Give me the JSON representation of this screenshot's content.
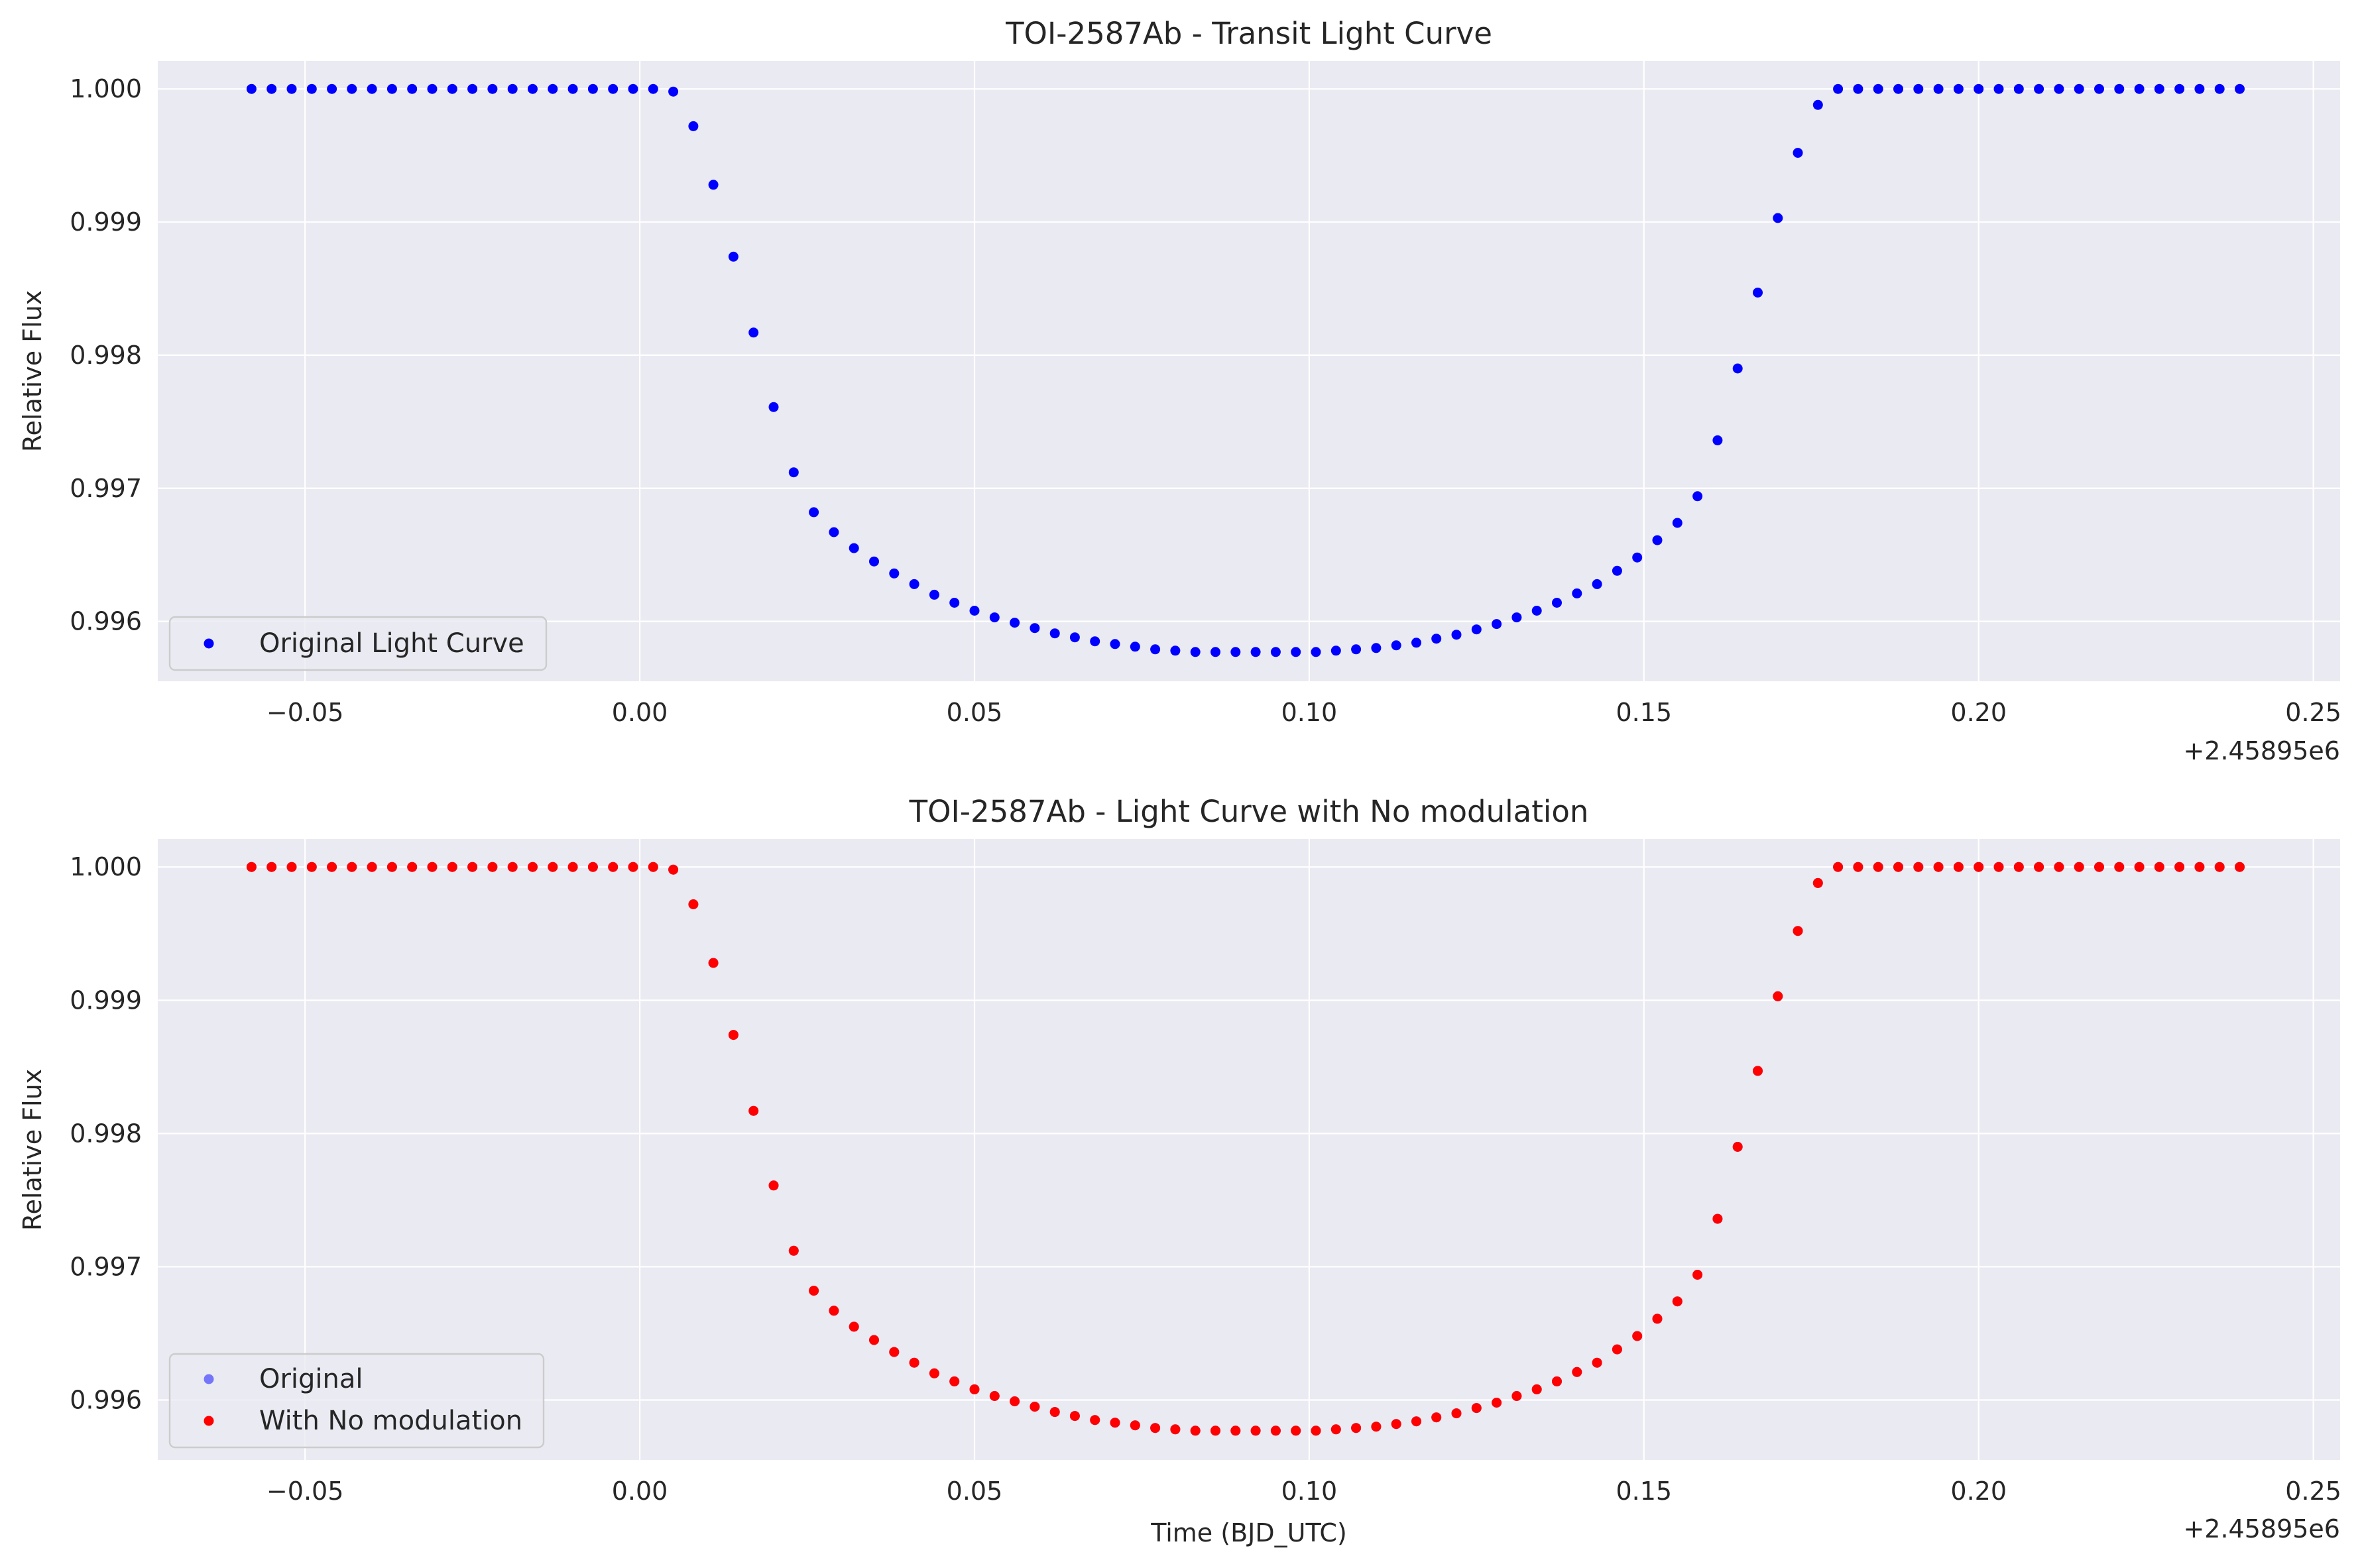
{
  "chart_data": [
    {
      "type": "scatter",
      "title": "TOI-2587Ab - Transit Light Curve",
      "xlabel": "",
      "ylabel": "Relative Flux",
      "x_offset_label": "+2.45895e6",
      "xlim": [
        -0.072,
        0.254
      ],
      "ylim": [
        0.99555,
        1.00021
      ],
      "xticks": [
        -0.05,
        0.0,
        0.05,
        0.1,
        0.15,
        0.2,
        0.25
      ],
      "xtick_labels": [
        "−0.05",
        "0.00",
        "0.05",
        "0.10",
        "0.15",
        "0.20",
        "0.25"
      ],
      "yticks": [
        0.996,
        0.997,
        0.998,
        0.999,
        1.0
      ],
      "ytick_labels": [
        "0.996",
        "0.997",
        "0.998",
        "0.999",
        "1.000"
      ],
      "grid": true,
      "legend_position": "lower-left",
      "series": [
        {
          "name": "Original Light Curve",
          "color": "#0000ff",
          "alpha": 1.0,
          "x": [
            -0.058,
            -0.055,
            -0.052,
            -0.049,
            -0.046,
            -0.043,
            -0.04,
            -0.037,
            -0.034,
            -0.031,
            -0.028,
            -0.025,
            -0.022,
            -0.019,
            -0.016,
            -0.013,
            -0.01,
            -0.007,
            -0.004,
            -0.001,
            0.002,
            0.005,
            0.008,
            0.011,
            0.014,
            0.017,
            0.02,
            0.023,
            0.026,
            0.029,
            0.032,
            0.035,
            0.038,
            0.041,
            0.044,
            0.047,
            0.05,
            0.053,
            0.056,
            0.059,
            0.062,
            0.065,
            0.068,
            0.071,
            0.074,
            0.077,
            0.08,
            0.083,
            0.086,
            0.089,
            0.092,
            0.095,
            0.098,
            0.101,
            0.104,
            0.107,
            0.11,
            0.113,
            0.116,
            0.119,
            0.122,
            0.125,
            0.128,
            0.131,
            0.134,
            0.137,
            0.14,
            0.143,
            0.146,
            0.149,
            0.152,
            0.155,
            0.158,
            0.161,
            0.164,
            0.167,
            0.17,
            0.173,
            0.176,
            0.179,
            0.182,
            0.185,
            0.188,
            0.191,
            0.194,
            0.197,
            0.2,
            0.203,
            0.206,
            0.209,
            0.212,
            0.215,
            0.218,
            0.221,
            0.224,
            0.227,
            0.23,
            0.233,
            0.236,
            0.239
          ],
          "y": [
            1.0,
            1.0,
            1.0,
            1.0,
            1.0,
            1.0,
            1.0,
            1.0,
            1.0,
            1.0,
            1.0,
            1.0,
            1.0,
            1.0,
            1.0,
            1.0,
            1.0,
            1.0,
            1.0,
            1.0,
            1.0,
            0.99998,
            0.99972,
            0.99928,
            0.99874,
            0.99817,
            0.99761,
            0.99712,
            0.99682,
            0.99667,
            0.99655,
            0.99645,
            0.99636,
            0.99628,
            0.9962,
            0.99614,
            0.99608,
            0.99603,
            0.99599,
            0.99595,
            0.99591,
            0.99588,
            0.99585,
            0.99583,
            0.99581,
            0.99579,
            0.99578,
            0.99577,
            0.99577,
            0.99577,
            0.99577,
            0.99577,
            0.99577,
            0.99577,
            0.99578,
            0.99579,
            0.9958,
            0.99582,
            0.99584,
            0.99587,
            0.9959,
            0.99594,
            0.99598,
            0.99603,
            0.99608,
            0.99614,
            0.99621,
            0.99628,
            0.99638,
            0.99648,
            0.99661,
            0.99674,
            0.99694,
            0.99736,
            0.9979,
            0.99847,
            0.99903,
            0.99952,
            0.99988,
            1.0,
            1.0,
            1.0,
            1.0,
            1.0,
            1.0,
            1.0,
            1.0,
            1.0,
            1.0,
            1.0,
            1.0,
            1.0,
            1.0,
            1.0,
            1.0,
            1.0,
            1.0,
            1.0,
            1.0,
            1.0
          ]
        }
      ]
    },
    {
      "type": "scatter",
      "title": "TOI-2587Ab - Light Curve with No modulation",
      "xlabel": "Time (BJD_UTC)",
      "ylabel": "Relative Flux",
      "x_offset_label": "+2.45895e6",
      "xlim": [
        -0.072,
        0.254
      ],
      "ylim": [
        0.99555,
        1.00021
      ],
      "xticks": [
        -0.05,
        0.0,
        0.05,
        0.1,
        0.15,
        0.2,
        0.25
      ],
      "xtick_labels": [
        "−0.05",
        "0.00",
        "0.05",
        "0.10",
        "0.15",
        "0.20",
        "0.25"
      ],
      "yticks": [
        0.996,
        0.997,
        0.998,
        0.999,
        1.0
      ],
      "ytick_labels": [
        "0.996",
        "0.997",
        "0.998",
        "0.999",
        "1.000"
      ],
      "grid": true,
      "legend_position": "lower-left",
      "series": [
        {
          "name": "Original",
          "color": "#0000ff",
          "alpha": 0.5,
          "same_points_as": "TOI-2587Ab - Transit Light Curve"
        },
        {
          "name": "With No modulation",
          "color": "#ff0000",
          "alpha": 1.0,
          "same_points_as": "TOI-2587Ab - Transit Light Curve"
        }
      ]
    }
  ]
}
